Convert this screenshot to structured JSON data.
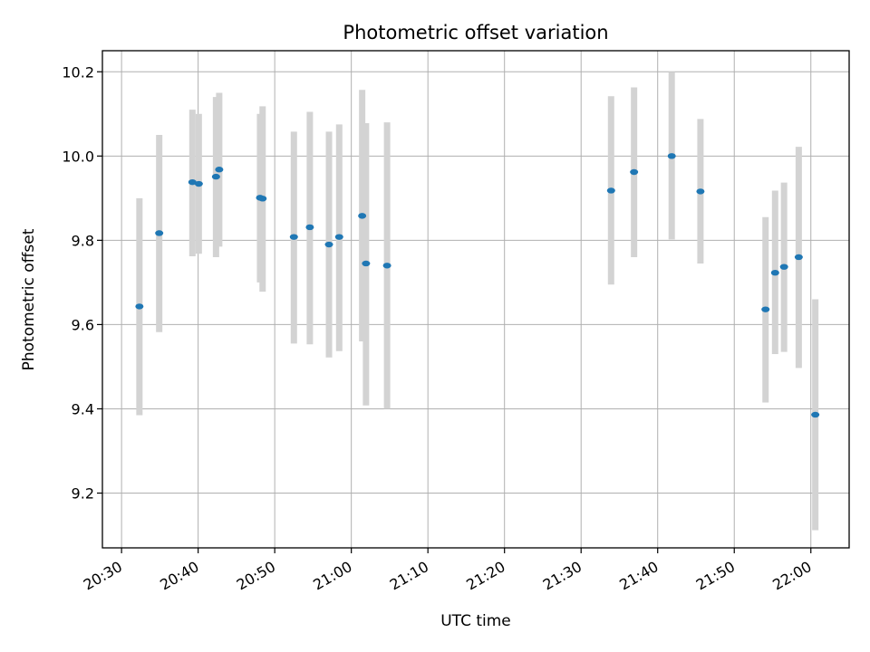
{
  "chart_data": {
    "type": "scatter",
    "title": "Photometric offset variation",
    "xlabel": "UTC time",
    "ylabel": "Photometric offset",
    "x_is_time": true,
    "xlim": [
      "20:27:30",
      "22:05:00"
    ],
    "ylim": [
      9.07,
      10.25
    ],
    "x_ticks": [
      "20:30",
      "20:40",
      "20:50",
      "21:00",
      "21:10",
      "21:20",
      "21:30",
      "21:40",
      "21:50",
      "22:00"
    ],
    "y_ticks": [
      9.2,
      9.4,
      9.6,
      9.8,
      10.0,
      10.2
    ],
    "y_tick_labels": [
      "9.2",
      "9.4",
      "9.6",
      "9.8",
      "10.0",
      "10.2"
    ],
    "grid": true,
    "marker_color": "#1f77b4",
    "errorbar_color": "#d3d3d3",
    "points": [
      {
        "t": "20:32:20",
        "y": 9.643,
        "low": 9.385,
        "high": 9.9
      },
      {
        "t": "20:34:55",
        "y": 9.817,
        "low": 9.582,
        "high": 10.05
      },
      {
        "t": "20:39:15",
        "y": 9.938,
        "low": 9.762,
        "high": 10.11
      },
      {
        "t": "20:40:05",
        "y": 9.934,
        "low": 9.768,
        "high": 10.1
      },
      {
        "t": "20:42:20",
        "y": 9.951,
        "low": 9.76,
        "high": 10.14
      },
      {
        "t": "20:42:45",
        "y": 9.968,
        "low": 9.785,
        "high": 10.15
      },
      {
        "t": "20:48:05",
        "y": 9.901,
        "low": 9.7,
        "high": 10.1
      },
      {
        "t": "20:48:25",
        "y": 9.899,
        "low": 9.678,
        "high": 10.118
      },
      {
        "t": "20:52:30",
        "y": 9.808,
        "low": 9.555,
        "high": 10.058
      },
      {
        "t": "20:54:35",
        "y": 9.831,
        "low": 9.553,
        "high": 10.105
      },
      {
        "t": "20:57:05",
        "y": 9.79,
        "low": 9.522,
        "high": 10.058
      },
      {
        "t": "20:58:25",
        "y": 9.808,
        "low": 9.537,
        "high": 10.075
      },
      {
        "t": "21:01:25",
        "y": 9.858,
        "low": 9.56,
        "high": 10.157
      },
      {
        "t": "21:01:55",
        "y": 9.745,
        "low": 9.408,
        "high": 10.078
      },
      {
        "t": "21:04:40",
        "y": 9.74,
        "low": 9.4,
        "high": 10.08
      },
      {
        "t": "21:33:55",
        "y": 9.918,
        "low": 9.695,
        "high": 10.142
      },
      {
        "t": "21:36:55",
        "y": 9.962,
        "low": 9.76,
        "high": 10.163
      },
      {
        "t": "21:41:50",
        "y": 10.0,
        "low": 9.802,
        "high": 10.2
      },
      {
        "t": "21:45:35",
        "y": 9.916,
        "low": 9.745,
        "high": 10.088
      },
      {
        "t": "21:54:05",
        "y": 9.636,
        "low": 9.415,
        "high": 9.855
      },
      {
        "t": "21:55:20",
        "y": 9.723,
        "low": 9.53,
        "high": 9.918
      },
      {
        "t": "21:56:30",
        "y": 9.737,
        "low": 9.535,
        "high": 9.937
      },
      {
        "t": "21:58:25",
        "y": 9.76,
        "low": 9.497,
        "high": 10.022
      },
      {
        "t": "22:00:35",
        "y": 9.386,
        "low": 9.112,
        "high": 9.66
      }
    ]
  }
}
